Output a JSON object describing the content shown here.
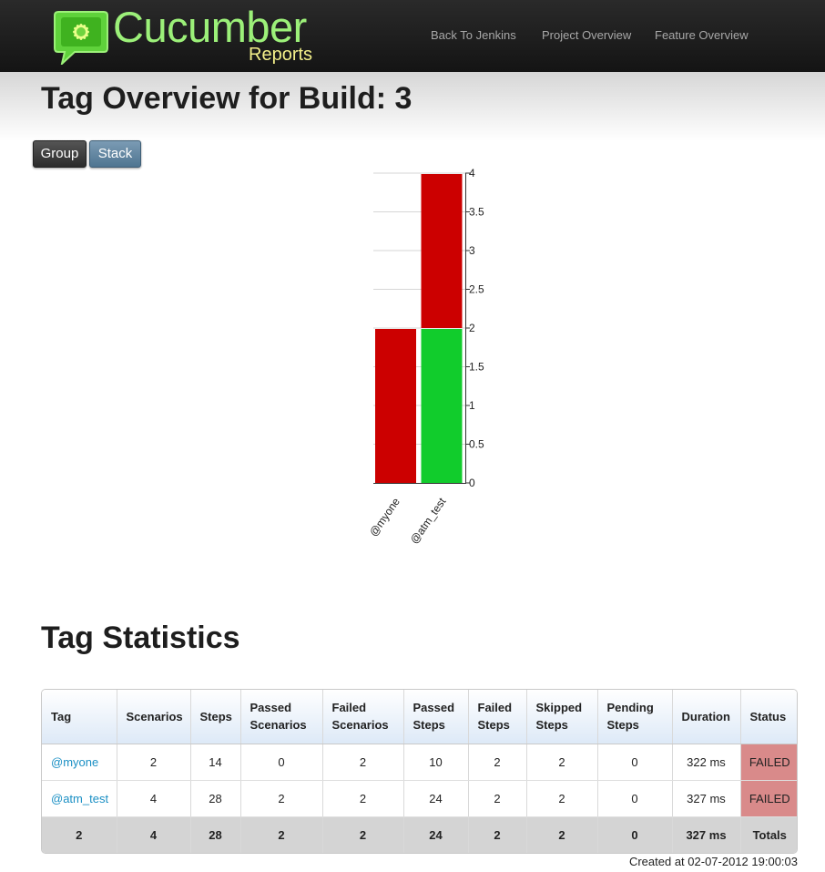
{
  "header": {
    "logo_title": "Cucumber",
    "logo_subtitle": "Reports",
    "nav": [
      "Back To Jenkins",
      "Project Overview",
      "Feature Overview"
    ]
  },
  "page": {
    "title": "Tag Overview for Build: 3",
    "buttons": {
      "group": "Group",
      "stack": "Stack"
    }
  },
  "chart_data": {
    "type": "bar",
    "stacked": true,
    "categories": [
      "@myone",
      "@atm_test"
    ],
    "series": [
      {
        "color": "#11cc2c",
        "values": [
          0,
          2
        ]
      },
      {
        "color": "#cc0000",
        "values": [
          2,
          2
        ]
      }
    ],
    "ylim": [
      0,
      4
    ],
    "yticks": [
      0,
      0.5,
      1,
      1.5,
      2,
      2.5,
      3,
      3.5,
      4
    ],
    "ytick_labels": [
      "0",
      "0.5",
      "1",
      "1.5",
      "2",
      "2.5",
      "3",
      "3.5",
      "4"
    ],
    "y_axis_side": "right",
    "grid": true
  },
  "stats": {
    "title": "Tag Statistics",
    "columns": [
      "Tag",
      "Scenarios",
      "Steps",
      "Passed Scenarios",
      "Failed Scenarios",
      "Passed Steps",
      "Failed Steps",
      "Skipped Steps",
      "Pending Steps",
      "Duration",
      "Status"
    ],
    "rows": [
      [
        "@myone",
        "2",
        "14",
        "0",
        "2",
        "10",
        "2",
        "2",
        "0",
        "322 ms",
        "FAILED"
      ],
      [
        "@atm_test",
        "4",
        "28",
        "2",
        "2",
        "24",
        "2",
        "2",
        "0",
        "327 ms",
        "FAILED"
      ]
    ],
    "totals": [
      "2",
      "4",
      "28",
      "2",
      "2",
      "24",
      "2",
      "2",
      "0",
      "327 ms",
      "Totals"
    ],
    "status_failed_color": "#d98a8a"
  },
  "footer": {
    "created": "Created at 02-07-2012 19:00:03"
  }
}
